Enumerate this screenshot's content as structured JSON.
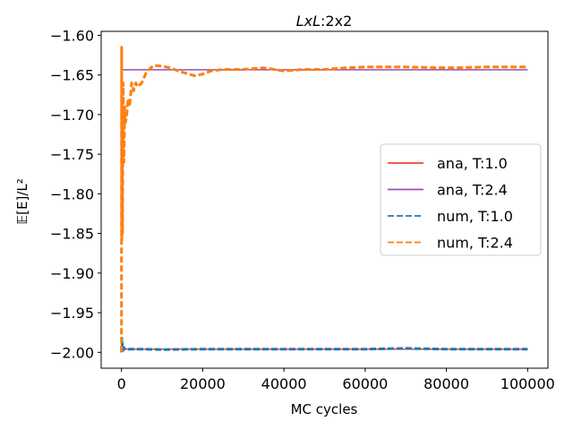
{
  "chart_data": {
    "type": "line",
    "title_italic": "LxL",
    "title_rest": ":2x2",
    "xlabel": "MC cycles",
    "ylabel": "𝔼[E]/L²",
    "xlim": [
      -5000,
      105000
    ],
    "ylim": [
      -2.02,
      -1.595
    ],
    "xticks": [
      0,
      20000,
      40000,
      60000,
      80000,
      100000
    ],
    "xtick_labels": [
      "0",
      "20000",
      "40000",
      "60000",
      "80000",
      "100000"
    ],
    "yticks": [
      -2.0,
      -1.95,
      -1.9,
      -1.85,
      -1.8,
      -1.75,
      -1.7,
      -1.65,
      -1.6
    ],
    "ytick_labels": [
      "−2.00",
      "−1.95",
      "−1.90",
      "−1.85",
      "−1.80",
      "−1.75",
      "−1.70",
      "−1.65",
      "−1.60"
    ],
    "grid": false,
    "legend_position": "center-right",
    "series": [
      {
        "name": "ana, T:1.0",
        "style": "solid",
        "color": "#f44336",
        "x": [
          0,
          100000
        ],
        "y": [
          -1.996,
          -1.996
        ]
      },
      {
        "name": "ana, T:2.4",
        "style": "solid",
        "color": "#9c4bb1",
        "x": [
          0,
          100000
        ],
        "y": [
          -1.6435,
          -1.6435
        ]
      },
      {
        "name": "num, T:1.0",
        "style": "dashed",
        "color": "#1f77b4",
        "x": [
          0,
          100,
          300,
          600,
          1000,
          2000,
          5000,
          10000,
          20000,
          40000,
          60000,
          70000,
          80000,
          100000
        ],
        "y": [
          -2.0,
          -1.982,
          -1.998,
          -1.994,
          -1.997,
          -1.996,
          -1.996,
          -1.9965,
          -1.996,
          -1.996,
          -1.996,
          -1.995,
          -1.996,
          -1.996
        ]
      },
      {
        "name": "num, T:2.4",
        "style": "dashed",
        "color": "#ff7f0e",
        "x": [
          0,
          40,
          80,
          150,
          250,
          400,
          600,
          800,
          1000,
          1300,
          1600,
          2000,
          2500,
          3000,
          3500,
          4000,
          5000,
          6000,
          7000,
          8000,
          10000,
          12000,
          14000,
          16000,
          18000,
          20000,
          22000,
          25000,
          30000,
          35000,
          40000,
          45000,
          50000,
          55000,
          60000,
          70000,
          80000,
          90000,
          100000
        ],
        "y": [
          -2.0,
          -1.615,
          -1.86,
          -1.72,
          -1.85,
          -1.66,
          -1.76,
          -1.69,
          -1.71,
          -1.7,
          -1.68,
          -1.69,
          -1.66,
          -1.67,
          -1.66,
          -1.665,
          -1.66,
          -1.648,
          -1.642,
          -1.638,
          -1.639,
          -1.641,
          -1.645,
          -1.648,
          -1.651,
          -1.649,
          -1.645,
          -1.643,
          -1.643,
          -1.641,
          -1.645,
          -1.643,
          -1.643,
          -1.641,
          -1.64,
          -1.64,
          -1.641,
          -1.64,
          -1.64
        ]
      }
    ]
  }
}
